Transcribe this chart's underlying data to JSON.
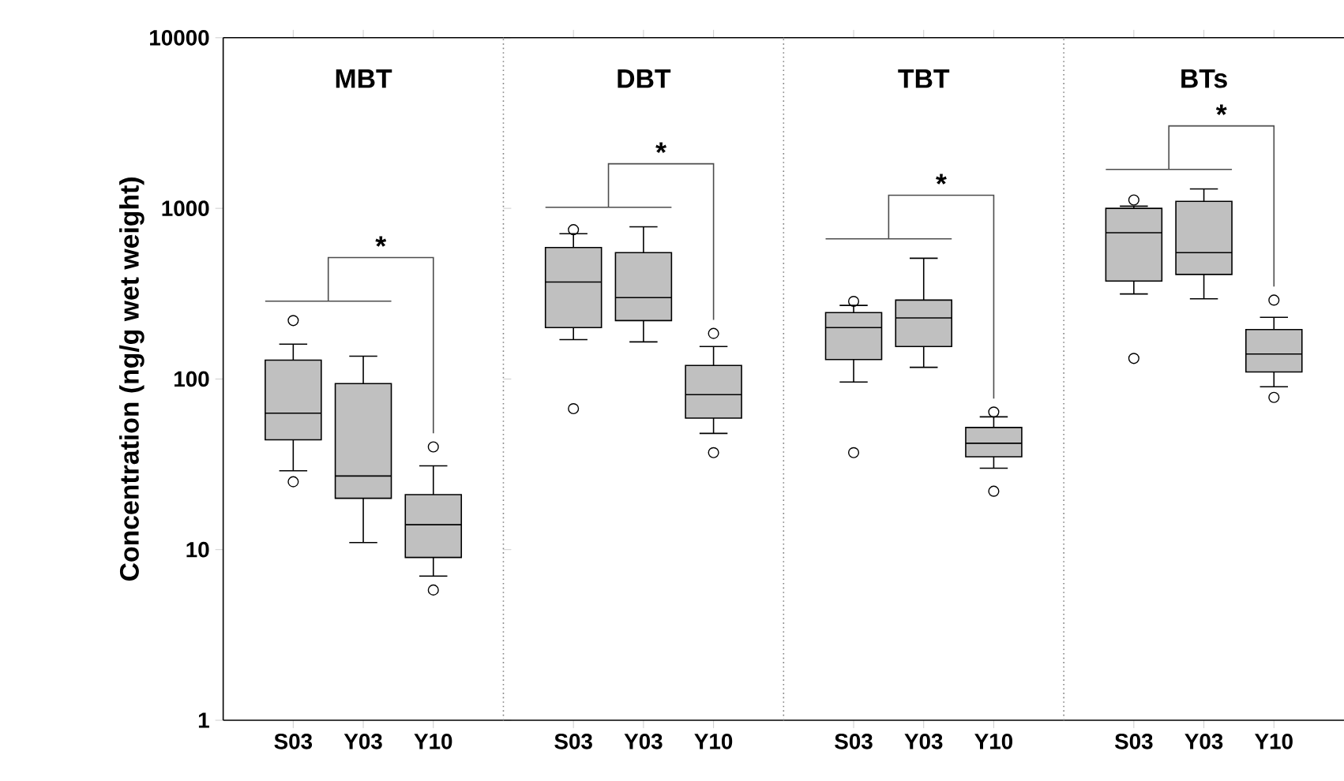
{
  "chart_data": [
    {
      "type": "box",
      "title": "MBT",
      "ylabel": "Concentration (ng/g wet weight)",
      "categories": [
        "S03",
        "Y03",
        "Y10"
      ],
      "color": "#c0c0c0",
      "log": true,
      "ylim": [
        1,
        10000
      ],
      "yticks": [
        1,
        10,
        100,
        1000,
        10000
      ],
      "marker": "circle",
      "annotations": [
        "*"
      ],
      "boxes": [
        {
          "low": 29,
          "q1": 44,
          "median": 63,
          "q3": 129,
          "high": 160,
          "outliers": [
            220,
            25
          ]
        },
        {
          "low": 11,
          "q1": 20,
          "median": 27,
          "q3": 94,
          "high": 136
        },
        {
          "low": 7,
          "q1": 9,
          "median": 14,
          "q3": 21,
          "high": 31,
          "outliers": [
            40,
            5.8
          ]
        }
      ]
    },
    {
      "type": "box",
      "title": "DBT",
      "categories": [
        "S03",
        "Y03",
        "Y10"
      ],
      "color": "#c0c0c0",
      "log": true,
      "ylim": [
        1,
        10000
      ],
      "yticks": [
        1,
        10,
        100,
        1000,
        10000
      ],
      "tick_labels": "x",
      "marker": "circle",
      "annotations": [
        "*"
      ],
      "boxes": [
        {
          "low": 170,
          "q1": 200,
          "median": 370,
          "q3": 590,
          "high": 710,
          "outliers": [
            750,
            67
          ]
        },
        {
          "low": 165,
          "q1": 220,
          "median": 300,
          "q3": 550,
          "high": 780
        },
        {
          "low": 48,
          "q1": 59,
          "median": 81,
          "q3": 120,
          "high": 155,
          "outliers": [
            185,
            37
          ]
        }
      ]
    },
    {
      "type": "box",
      "title": "TBT",
      "categories": [
        "S03",
        "Y03",
        "Y10"
      ],
      "color": "#c0c0c0",
      "log": true,
      "ylim": [
        1,
        10000
      ],
      "yticks": [
        1,
        10,
        100,
        1000,
        10000
      ],
      "tick_labels": "x",
      "marker": "circle",
      "annotations": [
        "*"
      ],
      "boxes": [
        {
          "low": 96,
          "q1": 130,
          "median": 200,
          "q3": 245,
          "high": 270,
          "outliers": [
            285,
            37
          ]
        },
        {
          "low": 117,
          "q1": 155,
          "median": 228,
          "q3": 290,
          "high": 510
        },
        {
          "low": 30,
          "q1": 35,
          "median": 42,
          "q3": 52,
          "high": 60,
          "outliers": [
            64,
            22
          ]
        }
      ]
    },
    {
      "type": "box",
      "title": "BTs",
      "categories": [
        "S03",
        "Y03",
        "Y10"
      ],
      "color": "#c0c0c0",
      "log": true,
      "ylim": [
        1,
        10000
      ],
      "yticks": [
        1,
        10,
        100,
        1000,
        10000
      ],
      "tick_labels": "x",
      "marker": "circle",
      "annotations": [
        "*"
      ],
      "boxes": [
        {
          "low": 315,
          "q1": 375,
          "median": 720,
          "q3": 1000,
          "high": 1030,
          "outliers": [
            1120,
            132
          ]
        },
        {
          "low": 295,
          "q1": 410,
          "median": 550,
          "q3": 1100,
          "high": 1300
        },
        {
          "low": 90,
          "q1": 110,
          "median": 140,
          "q3": 195,
          "high": 230,
          "outliers": [
            290,
            78
          ]
        }
      ]
    }
  ]
}
